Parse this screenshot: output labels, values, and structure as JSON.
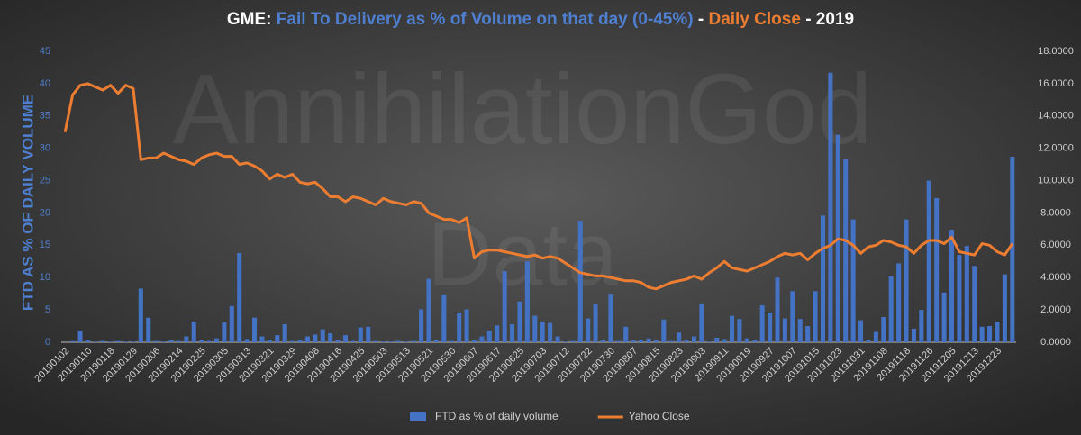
{
  "chart_data": {
    "type": "bar_line",
    "title_parts": [
      {
        "text": "GME: ",
        "color": "#ffffff"
      },
      {
        "text": "Fail To Delivery as % of Volume on that day (0-45%)",
        "color": "#4f7fd0"
      },
      {
        "text": " - ",
        "color": "#ffffff"
      },
      {
        "text": "Daily Close",
        "color": "#ed7d31"
      },
      {
        "text": " - 2019",
        "color": "#ffffff"
      }
    ],
    "watermark": [
      "AnnihilationGod",
      "Data"
    ],
    "y_label": "FTD AS % OF DAILY VOLUME",
    "categories": [
      "20190102",
      null,
      null,
      "20190110",
      null,
      null,
      "20190118",
      null,
      null,
      "20190129",
      null,
      null,
      "20190206",
      null,
      null,
      "20190214",
      null,
      null,
      "20190225",
      null,
      null,
      "20190305",
      null,
      null,
      "20190313",
      null,
      null,
      "20190321",
      null,
      null,
      "20190329",
      null,
      null,
      "20190408",
      null,
      null,
      "20190416",
      null,
      null,
      "20190425",
      null,
      null,
      "20190503",
      null,
      null,
      "20190513",
      null,
      null,
      "20190521",
      null,
      null,
      "20190530",
      null,
      null,
      "20190607",
      null,
      null,
      "20190617",
      null,
      null,
      "20190625",
      null,
      null,
      "20190703",
      null,
      null,
      "20190712",
      null,
      null,
      "20190722",
      null,
      null,
      "20190730",
      null,
      null,
      "20190807",
      null,
      null,
      "20190815",
      null,
      null,
      "20190823",
      null,
      null,
      "20190903",
      null,
      null,
      "20190911",
      null,
      null,
      "20190919",
      null,
      null,
      "20190927",
      null,
      null,
      "20191007",
      null,
      null,
      "20191015",
      null,
      null,
      "20191023",
      null,
      null,
      "20191031",
      null,
      null,
      "20191108",
      null,
      null,
      "20191118",
      null,
      null,
      "20191126",
      null,
      null,
      "20191205",
      null,
      null,
      "20191213",
      null,
      null,
      "20191223",
      null,
      null
    ],
    "series": [
      {
        "name": "FTD as % of daily volume",
        "type": "bar",
        "axis": "y",
        "color": "#4472c4",
        "values": [
          0,
          0.2,
          1.7,
          0.3,
          0.1,
          0.2,
          0.1,
          0.2,
          0.1,
          0.1,
          8.3,
          3.8,
          0.2,
          0.1,
          0.3,
          0.2,
          0.9,
          3.2,
          0.3,
          0.2,
          0.6,
          3.1,
          5.6,
          13.8,
          0.5,
          3.8,
          0.9,
          0.4,
          1.1,
          2.8,
          0.2,
          0.4,
          0.9,
          1.2,
          2.0,
          1.4,
          0.3,
          1.1,
          0.2,
          2.3,
          2.4,
          0.2,
          0.1,
          0.1,
          0.2,
          0.1,
          0.2,
          5.1,
          9.8,
          0.3,
          7.4,
          0.2,
          4.6,
          5.1,
          0.4,
          0.9,
          1.8,
          2.6,
          11.0,
          2.8,
          6.3,
          12.5,
          4.1,
          3.2,
          3.0,
          0.9,
          0.1,
          0.2,
          18.8,
          3.7,
          5.9,
          0.3,
          7.5,
          0.2,
          2.4,
          0.3,
          0.4,
          0.6,
          0.3,
          3.5,
          0.2,
          1.5,
          0.3,
          0.9,
          6.0,
          0.1,
          0.7,
          0.5,
          4.1,
          3.6,
          0.6,
          0.3,
          5.7,
          4.6,
          10.0,
          3.7,
          7.9,
          3.6,
          2.5,
          7.9,
          19.6,
          41.7,
          32.1,
          28.3,
          19.0,
          3.4,
          0.3,
          1.6,
          3.9,
          10.2,
          12.2,
          19.0,
          2.1,
          5.0,
          25.0,
          22.3,
          7.7,
          17.4,
          13.5,
          14.9,
          11.8,
          2.4,
          2.5,
          3.2,
          10.5,
          28.7
        ]
      },
      {
        "name": "Yahoo Close",
        "type": "line",
        "axis": "y2",
        "color": "#ed7d31",
        "values": [
          13.0,
          15.3,
          15.9,
          16.0,
          15.8,
          15.6,
          15.9,
          15.4,
          15.9,
          15.7,
          11.3,
          11.4,
          11.4,
          11.7,
          11.5,
          11.3,
          11.2,
          11.0,
          11.4,
          11.6,
          11.7,
          11.5,
          11.5,
          11.0,
          11.1,
          10.9,
          10.6,
          10.1,
          10.4,
          10.2,
          10.4,
          9.9,
          9.8,
          9.9,
          9.5,
          9.0,
          9.0,
          8.7,
          9.0,
          8.9,
          8.7,
          8.5,
          8.9,
          8.7,
          8.6,
          8.5,
          8.7,
          8.6,
          8.0,
          7.8,
          7.6,
          7.6,
          7.4,
          7.7,
          5.2,
          5.6,
          5.7,
          5.7,
          5.6,
          5.5,
          5.4,
          5.3,
          5.4,
          5.2,
          5.3,
          5.2,
          4.9,
          4.6,
          4.3,
          4.2,
          4.1,
          4.1,
          4.0,
          3.9,
          3.8,
          3.8,
          3.7,
          3.4,
          3.3,
          3.5,
          3.7,
          3.8,
          3.9,
          4.1,
          3.9,
          4.3,
          4.6,
          5.0,
          4.6,
          4.5,
          4.4,
          4.6,
          4.8,
          5.0,
          5.3,
          5.5,
          5.4,
          5.5,
          5.1,
          5.5,
          5.8,
          6.0,
          6.4,
          6.3,
          6.0,
          5.5,
          5.9,
          6.0,
          6.3,
          6.2,
          6.0,
          5.9,
          5.5,
          6.0,
          6.3,
          6.3,
          6.1,
          6.5,
          5.6,
          5.5,
          5.4,
          6.1,
          6.0,
          5.6,
          5.4,
          6.1
        ]
      }
    ],
    "ylim": [
      0,
      45
    ],
    "yticks": [
      0,
      5,
      10,
      15,
      20,
      25,
      30,
      35,
      40,
      45
    ],
    "y2lim": [
      0,
      18
    ],
    "y2ticks": [
      {
        "value": 0,
        "label": "0.0000"
      },
      {
        "value": 2,
        "label": "2.0000"
      },
      {
        "value": 4,
        "label": "4.0000"
      },
      {
        "value": 6,
        "label": "6.0000"
      },
      {
        "value": 8,
        "label": "8.0000"
      },
      {
        "value": 10,
        "label": "10.0000"
      },
      {
        "value": 12,
        "label": "12.0000"
      },
      {
        "value": 14,
        "label": "14.0000"
      },
      {
        "value": 16,
        "label": "16.0000"
      },
      {
        "value": 18,
        "label": "18.0000"
      }
    ],
    "grid": false,
    "legend": "bottom"
  }
}
